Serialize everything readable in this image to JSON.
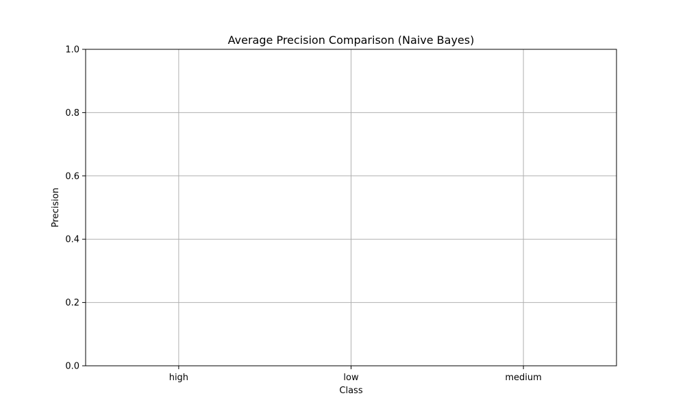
{
  "chart_data": {
    "type": "bar",
    "title": "Average Precision Comparison (Naive Bayes)",
    "xlabel": "Class",
    "ylabel": "Precision",
    "categories": [
      "high",
      "low",
      "medium"
    ],
    "values": [
      null,
      null,
      null
    ],
    "ylim": [
      0,
      1
    ],
    "yticks": [
      "0.0",
      "0.2",
      "0.4",
      "0.6",
      "0.8",
      "1.0"
    ],
    "grid": true,
    "legend": "none",
    "colors": {
      "grid": "#b0b0b0",
      "axis": "#000000",
      "background": "#ffffff"
    }
  }
}
